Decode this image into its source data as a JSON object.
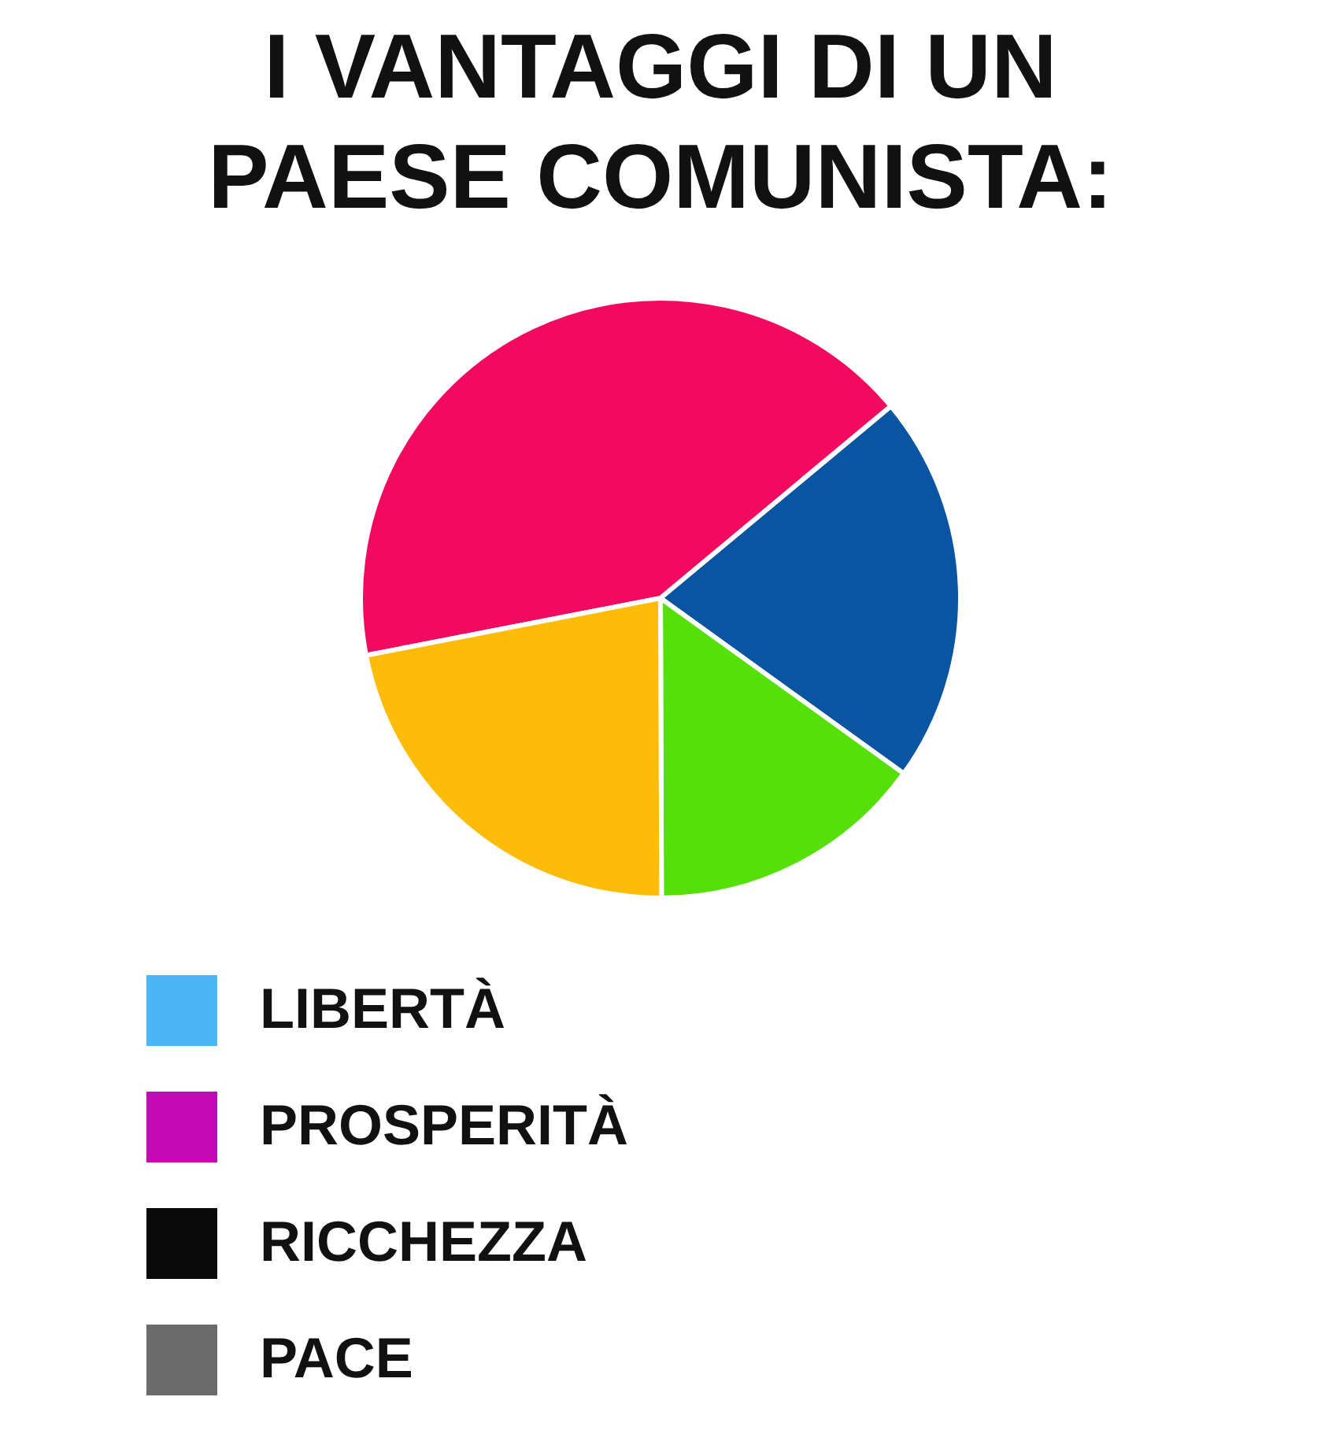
{
  "chart_data": {
    "type": "pie",
    "title": "I VANTAGGI DI UN PAESE COMUNISTA:",
    "categories": [
      null,
      null,
      null,
      null,
      "LIBERTÀ",
      "PROSPERITÀ",
      "RICCHEZZA",
      "PACE"
    ],
    "values": [
      42,
      21,
      15,
      22,
      0,
      0,
      0,
      0
    ],
    "colors": [
      "#f10a5f",
      "#0a55a2",
      "#55e00a",
      "#fdbb0a",
      "#4cb5f5",
      "#c40ab4",
      "#0a0a0a",
      "#6b6b6b"
    ],
    "legend": "bottom left"
  }
}
